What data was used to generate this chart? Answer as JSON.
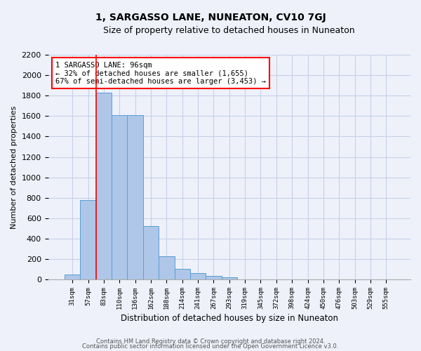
{
  "title": "1, SARGASSO LANE, NUNEATON, CV10 7GJ",
  "subtitle": "Size of property relative to detached houses in Nuneaton",
  "xlabel": "Distribution of detached houses by size in Nuneaton",
  "ylabel": "Number of detached properties",
  "bar_labels": [
    "31sqm",
    "57sqm",
    "83sqm",
    "110sqm",
    "136sqm",
    "162sqm",
    "188sqm",
    "214sqm",
    "241sqm",
    "267sqm",
    "293sqm",
    "319sqm",
    "345sqm",
    "372sqm",
    "398sqm",
    "424sqm",
    "450sqm",
    "476sqm",
    "503sqm",
    "529sqm",
    "555sqm"
  ],
  "bar_values": [
    50,
    780,
    1830,
    1610,
    1610,
    520,
    230,
    105,
    60,
    35,
    20,
    0,
    0,
    0,
    0,
    0,
    0,
    0,
    0,
    0,
    0
  ],
  "bar_color": "#aec6e8",
  "bar_edge_color": "#5a9fd4",
  "ylim": [
    0,
    2200
  ],
  "yticks": [
    0,
    200,
    400,
    600,
    800,
    1000,
    1200,
    1400,
    1600,
    1800,
    2000,
    2200
  ],
  "vline_index": 2,
  "vline_color": "red",
  "annotation_text": "1 SARGASSO LANE: 96sqm\n← 32% of detached houses are smaller (1,655)\n67% of semi-detached houses are larger (3,453) →",
  "annotation_box_color": "white",
  "annotation_box_edge": "red",
  "footer1": "Contains HM Land Registry data © Crown copyright and database right 2024.",
  "footer2": "Contains public sector information licensed under the Open Government Licence v3.0.",
  "bg_color": "#eef1fa",
  "grid_color": "#c8d0e8"
}
